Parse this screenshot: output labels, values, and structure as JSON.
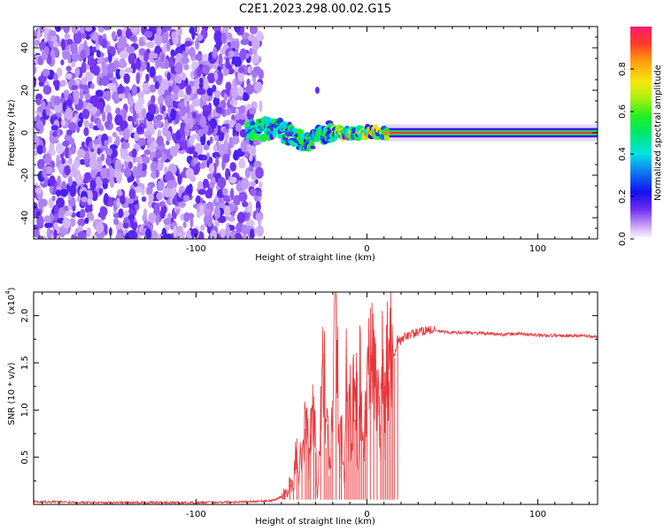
{
  "figure": {
    "title": "C2E1.2023.298.00.02.G15"
  },
  "chart_data": [
    {
      "type": "heatmap",
      "title": "C2E1.2023.298.00.02.G15",
      "xlabel": "Height of straight line (km)",
      "ylabel": "Frequency (Hz)",
      "xlim": [
        -195,
        135
      ],
      "ylim": [
        -50,
        50
      ],
      "x_ticks": [
        -100,
        0,
        100
      ],
      "y_ticks": [
        -40,
        -20,
        0,
        20,
        40
      ],
      "colorbar": {
        "label": "Normalized spectral amplitude",
        "range": [
          0.0,
          1.0
        ],
        "ticks": [
          0.0,
          0.2,
          0.4,
          0.6,
          0.8
        ]
      },
      "regions": [
        {
          "name": "noise",
          "x_range": [
            -195,
            -65
          ],
          "freq_range": [
            -50,
            50
          ],
          "amplitude": "low 0.0-0.25"
        },
        {
          "name": "transition",
          "x_range": [
            -70,
            10
          ],
          "freq_range": [
            -10,
            8
          ],
          "amplitude": "mixed 0.2-0.9"
        },
        {
          "name": "carrier",
          "x_range": [
            10,
            135
          ],
          "freq_value": 0,
          "amplitude": "peak ~1.0"
        }
      ],
      "track": {
        "x": [
          -70,
          -60,
          -50,
          -45,
          -40,
          -35,
          -30,
          -25,
          -20,
          -15,
          -10,
          -5,
          0,
          5,
          10,
          20,
          40,
          60,
          80,
          100,
          120,
          135
        ],
        "y": [
          0,
          2,
          1,
          -1,
          -3,
          -4,
          -2,
          -1,
          1,
          0,
          0,
          0,
          0,
          0,
          0,
          0,
          0,
          0,
          0,
          0,
          0,
          0
        ]
      },
      "outlier": {
        "x": -29,
        "y": 20
      }
    },
    {
      "type": "line",
      "xlabel": "Height of straight line (km)",
      "ylabel": "SNR (10 * v/v)",
      "y_scale_label": "(x10",
      "y_scale_exp": "4",
      "y_scale_close": ")",
      "xlim": [
        -195,
        135
      ],
      "ylim": [
        0,
        2.25
      ],
      "x_ticks": [
        -100,
        0,
        100
      ],
      "y_ticks": [
        0.5,
        1.0,
        1.5,
        2.0
      ],
      "y_tick_labels": [
        "0.5",
        "1.0",
        "1.5",
        "2.0"
      ],
      "series": [
        {
          "color": "#e8363a",
          "x": [
            -195,
            -150,
            -100,
            -70,
            -55,
            -48,
            -45,
            -43,
            -41,
            -40,
            -38,
            -36,
            -35,
            -34,
            -33,
            -31,
            -30,
            -29,
            -27,
            -25,
            -24,
            -23,
            -22,
            -21,
            -20,
            -18,
            -16,
            -15,
            -13,
            -12,
            -11,
            -10,
            -9,
            -8,
            -7,
            -6,
            -5,
            -4,
            -3,
            -2,
            -1,
            0,
            2,
            4,
            6,
            8,
            9,
            10,
            11,
            12,
            13,
            14,
            15,
            16,
            18,
            20,
            22,
            25,
            30,
            35,
            40,
            45,
            50,
            60,
            80,
            90,
            100,
            120,
            135
          ],
          "y": [
            0.03,
            0.02,
            0.02,
            0.03,
            0.04,
            0.1,
            0.22,
            0.15,
            0.7,
            0.3,
            0.6,
            0.8,
            0.95,
            0.4,
            0.75,
            1.0,
            0.55,
            0.05,
            0.9,
            1.6,
            0.6,
            0.85,
            0.3,
            0.6,
            1.1,
            2.22,
            0.4,
            0.8,
            0.2,
            1.45,
            0.5,
            1.2,
            0.65,
            1.35,
            0.9,
            1.25,
            0.35,
            1.5,
            0.8,
            0.6,
            1.0,
            1.3,
            1.5,
            1.45,
            1.25,
            0.7,
            2.05,
            0.8,
            1.4,
            1.55,
            1.3,
            1.6,
            1.7,
            1.55,
            1.75,
            1.72,
            1.78,
            1.8,
            1.82,
            1.85,
            1.84,
            1.83,
            1.82,
            1.82,
            1.8,
            1.81,
            1.79,
            1.79,
            1.78
          ]
        }
      ]
    }
  ]
}
